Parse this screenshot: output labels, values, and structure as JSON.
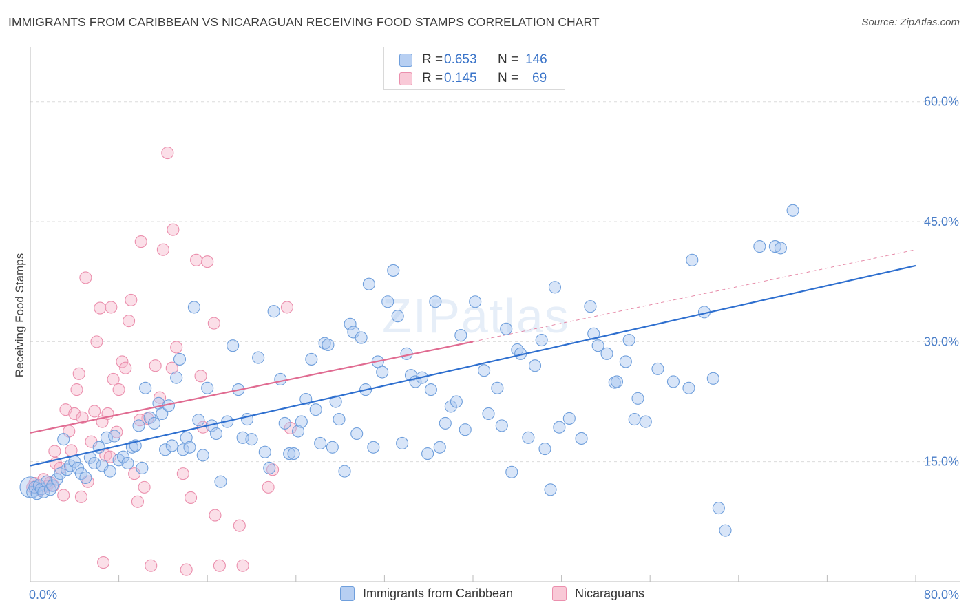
{
  "title": "IMMIGRANTS FROM CARIBBEAN VS NICARAGUAN RECEIVING FOOD STAMPS CORRELATION CHART",
  "source": "Source: ZipAtlas.com",
  "watermark": {
    "zip": "ZIP",
    "atlas": "atlas"
  },
  "colors": {
    "blue_fill": "#a9c6ef",
    "blue_stroke": "#6f9fdc",
    "blue_line": "#2e6fcf",
    "pink_fill": "#f7b8cb",
    "pink_stroke": "#eb8fad",
    "pink_line": "#e06b91",
    "tick_label": "#4a7ec8",
    "grid": "#dcdcdc"
  },
  "legend": {
    "rows": [
      {
        "r_label": "R =",
        "r_value": "0.653",
        "n_label": "N =",
        "n_value": "146"
      },
      {
        "r_label": "R =",
        "r_value": "0.145",
        "n_label": "N =",
        "n_value": "69"
      }
    ]
  },
  "bottom_legend": {
    "series1": "Immigrants from Caribbean",
    "series2": "Nicaraguans"
  },
  "chart_data": {
    "type": "scatter",
    "xlabel": "",
    "ylabel": "Receiving Food Stamps",
    "xlim": [
      0,
      80
    ],
    "ylim": [
      0,
      66
    ],
    "x_tick_labels": [
      {
        "value": 0,
        "label": "0.0%"
      },
      {
        "value": 80,
        "label": "80.0%"
      }
    ],
    "y_tick_labels": [
      {
        "value": 15,
        "label": "15.0%"
      },
      {
        "value": 30,
        "label": "30.0%"
      },
      {
        "value": 45,
        "label": "45.0%"
      },
      {
        "value": 60,
        "label": "60.0%"
      }
    ],
    "grid": true,
    "series": [
      {
        "name": "Immigrants from Caribbean",
        "r": 0.653,
        "n": 146,
        "trend": {
          "x0": 0,
          "y0": 14.5,
          "x1": 80,
          "y1": 39.5
        },
        "points": [
          [
            0.2,
            11.2
          ],
          [
            0.4,
            11.8
          ],
          [
            0.6,
            11.0
          ],
          [
            0.8,
            12.0
          ],
          [
            1.0,
            11.6
          ],
          [
            1.2,
            11.2
          ],
          [
            1.5,
            12.5
          ],
          [
            1.8,
            11.5
          ],
          [
            2.0,
            12.0
          ],
          [
            2.4,
            12.8
          ],
          [
            2.7,
            13.5
          ],
          [
            3.0,
            17.8
          ],
          [
            3.3,
            14.0
          ],
          [
            3.6,
            14.5
          ],
          [
            4.0,
            15.0
          ],
          [
            4.3,
            14.2
          ],
          [
            4.6,
            13.5
          ],
          [
            5.0,
            13.0
          ],
          [
            5.4,
            15.5
          ],
          [
            5.8,
            14.8
          ],
          [
            6.2,
            16.8
          ],
          [
            6.5,
            14.5
          ],
          [
            6.9,
            18.0
          ],
          [
            7.2,
            13.8
          ],
          [
            7.6,
            18.2
          ],
          [
            8.0,
            15.2
          ],
          [
            8.4,
            15.6
          ],
          [
            8.8,
            14.8
          ],
          [
            9.2,
            16.8
          ],
          [
            9.5,
            17.0
          ],
          [
            9.8,
            19.5
          ],
          [
            10.1,
            14.2
          ],
          [
            10.4,
            24.2
          ],
          [
            10.8,
            20.5
          ],
          [
            11.2,
            19.8
          ],
          [
            11.6,
            22.3
          ],
          [
            11.9,
            21.0
          ],
          [
            12.2,
            16.5
          ],
          [
            12.5,
            22.0
          ],
          [
            12.8,
            17.0
          ],
          [
            13.2,
            25.5
          ],
          [
            13.5,
            27.8
          ],
          [
            13.8,
            16.5
          ],
          [
            14.1,
            18.0
          ],
          [
            14.4,
            16.8
          ],
          [
            14.8,
            34.3
          ],
          [
            15.2,
            20.2
          ],
          [
            15.6,
            15.8
          ],
          [
            16.0,
            24.2
          ],
          [
            16.4,
            19.5
          ],
          [
            16.8,
            18.5
          ],
          [
            17.2,
            12.5
          ],
          [
            17.8,
            20.0
          ],
          [
            18.3,
            29.5
          ],
          [
            18.8,
            24.0
          ],
          [
            19.2,
            18.0
          ],
          [
            19.6,
            20.3
          ],
          [
            20.0,
            17.8
          ],
          [
            20.6,
            28.0
          ],
          [
            21.2,
            16.2
          ],
          [
            21.6,
            14.2
          ],
          [
            22.0,
            33.8
          ],
          [
            22.6,
            25.3
          ],
          [
            23.0,
            19.8
          ],
          [
            23.4,
            16.0
          ],
          [
            23.8,
            16.0
          ],
          [
            24.2,
            18.8
          ],
          [
            24.5,
            20.0
          ],
          [
            24.9,
            22.8
          ],
          [
            25.4,
            27.8
          ],
          [
            25.8,
            21.5
          ],
          [
            26.2,
            17.3
          ],
          [
            26.6,
            29.8
          ],
          [
            26.9,
            29.6
          ],
          [
            27.3,
            16.8
          ],
          [
            27.6,
            22.5
          ],
          [
            27.9,
            20.3
          ],
          [
            28.4,
            13.8
          ],
          [
            28.9,
            32.2
          ],
          [
            29.2,
            31.2
          ],
          [
            29.5,
            18.5
          ],
          [
            29.9,
            30.5
          ],
          [
            30.3,
            24.0
          ],
          [
            30.6,
            37.2
          ],
          [
            31.0,
            16.8
          ],
          [
            31.4,
            27.5
          ],
          [
            31.8,
            26.2
          ],
          [
            32.3,
            35.0
          ],
          [
            32.8,
            38.9
          ],
          [
            33.2,
            33.2
          ],
          [
            33.6,
            17.3
          ],
          [
            34.0,
            28.5
          ],
          [
            34.4,
            25.8
          ],
          [
            34.8,
            25.0
          ],
          [
            35.4,
            25.5
          ],
          [
            35.9,
            16.0
          ],
          [
            36.2,
            24.0
          ],
          [
            36.6,
            35.0
          ],
          [
            37.0,
            16.8
          ],
          [
            37.5,
            19.8
          ],
          [
            38.0,
            21.9
          ],
          [
            38.5,
            22.5
          ],
          [
            38.9,
            30.8
          ],
          [
            39.3,
            19.0
          ],
          [
            40.2,
            35.0
          ],
          [
            41.0,
            26.4
          ],
          [
            41.4,
            21.0
          ],
          [
            42.2,
            24.2
          ],
          [
            42.6,
            19.5
          ],
          [
            43.0,
            31.6
          ],
          [
            43.5,
            13.7
          ],
          [
            44.0,
            29.0
          ],
          [
            44.3,
            28.5
          ],
          [
            45.0,
            18.0
          ],
          [
            45.6,
            27.0
          ],
          [
            46.2,
            30.2
          ],
          [
            46.5,
            16.6
          ],
          [
            47.0,
            11.5
          ],
          [
            47.4,
            36.8
          ],
          [
            47.8,
            19.3
          ],
          [
            48.7,
            20.4
          ],
          [
            49.8,
            17.9
          ],
          [
            50.6,
            34.4
          ],
          [
            50.9,
            31.0
          ],
          [
            51.3,
            29.5
          ],
          [
            52.1,
            28.5
          ],
          [
            52.8,
            24.9
          ],
          [
            53.0,
            25.0
          ],
          [
            53.8,
            27.5
          ],
          [
            54.1,
            30.2
          ],
          [
            54.6,
            20.3
          ],
          [
            54.9,
            22.9
          ],
          [
            55.6,
            20.0
          ],
          [
            56.7,
            26.6
          ],
          [
            58.1,
            25.0
          ],
          [
            59.5,
            24.2
          ],
          [
            59.8,
            40.2
          ],
          [
            60.9,
            33.7
          ],
          [
            61.7,
            25.4
          ],
          [
            62.2,
            9.2
          ],
          [
            62.8,
            6.4
          ],
          [
            65.9,
            41.9
          ],
          [
            67.3,
            41.9
          ],
          [
            67.8,
            41.7
          ],
          [
            68.9,
            46.4
          ]
        ]
      },
      {
        "name": "Nicaraguans",
        "r": 0.145,
        "n": 69,
        "trend": {
          "x0": 0,
          "y0": 18.6,
          "x1": 40,
          "y1": 30.0,
          "dashed_x1": 80,
          "dashed_y1": 41.5
        },
        "points": [
          [
            0.2,
            11.8
          ],
          [
            0.4,
            12.3
          ],
          [
            0.6,
            12.0
          ],
          [
            0.9,
            11.5
          ],
          [
            1.2,
            12.8
          ],
          [
            1.5,
            11.9
          ],
          [
            1.8,
            12.4
          ],
          [
            2.1,
            12.0
          ],
          [
            2.3,
            14.8
          ],
          [
            2.7,
            14.2
          ],
          [
            3.0,
            10.8
          ],
          [
            3.2,
            21.5
          ],
          [
            3.5,
            18.8
          ],
          [
            3.7,
            16.4
          ],
          [
            4.0,
            21.0
          ],
          [
            4.2,
            24.0
          ],
          [
            4.4,
            26.0
          ],
          [
            4.7,
            20.5
          ],
          [
            5.0,
            38.0
          ],
          [
            5.2,
            12.5
          ],
          [
            5.5,
            17.5
          ],
          [
            5.8,
            21.3
          ],
          [
            6.0,
            30.0
          ],
          [
            6.3,
            34.2
          ],
          [
            6.5,
            20.0
          ],
          [
            6.8,
            15.8
          ],
          [
            7.0,
            21.0
          ],
          [
            7.3,
            34.3
          ],
          [
            7.5,
            25.3
          ],
          [
            7.8,
            18.7
          ],
          [
            8.0,
            24.0
          ],
          [
            8.3,
            27.5
          ],
          [
            8.6,
            26.7
          ],
          [
            8.9,
            32.6
          ],
          [
            9.1,
            35.2
          ],
          [
            9.4,
            13.5
          ],
          [
            9.7,
            10.0
          ],
          [
            10.0,
            42.5
          ],
          [
            10.3,
            11.8
          ],
          [
            10.6,
            20.4
          ],
          [
            10.9,
            2.0
          ],
          [
            11.3,
            27.0
          ],
          [
            11.7,
            23.0
          ],
          [
            12.0,
            41.5
          ],
          [
            12.4,
            53.6
          ],
          [
            12.9,
            44.0
          ],
          [
            13.2,
            29.3
          ],
          [
            13.8,
            13.5
          ],
          [
            14.1,
            1.5
          ],
          [
            14.5,
            10.5
          ],
          [
            15.0,
            40.2
          ],
          [
            15.4,
            25.7
          ],
          [
            15.6,
            19.3
          ],
          [
            16.0,
            40.0
          ],
          [
            16.6,
            32.3
          ],
          [
            16.7,
            8.3
          ],
          [
            17.1,
            2.0
          ],
          [
            18.9,
            7.0
          ],
          [
            19.2,
            2.0
          ],
          [
            21.5,
            11.8
          ],
          [
            21.9,
            14.0
          ],
          [
            23.2,
            34.3
          ],
          [
            23.5,
            19.2
          ],
          [
            2.2,
            16.3
          ],
          [
            4.6,
            10.6
          ],
          [
            6.6,
            2.4
          ],
          [
            7.2,
            15.6
          ],
          [
            9.9,
            20.2
          ],
          [
            12.8,
            26.7
          ]
        ]
      }
    ]
  }
}
